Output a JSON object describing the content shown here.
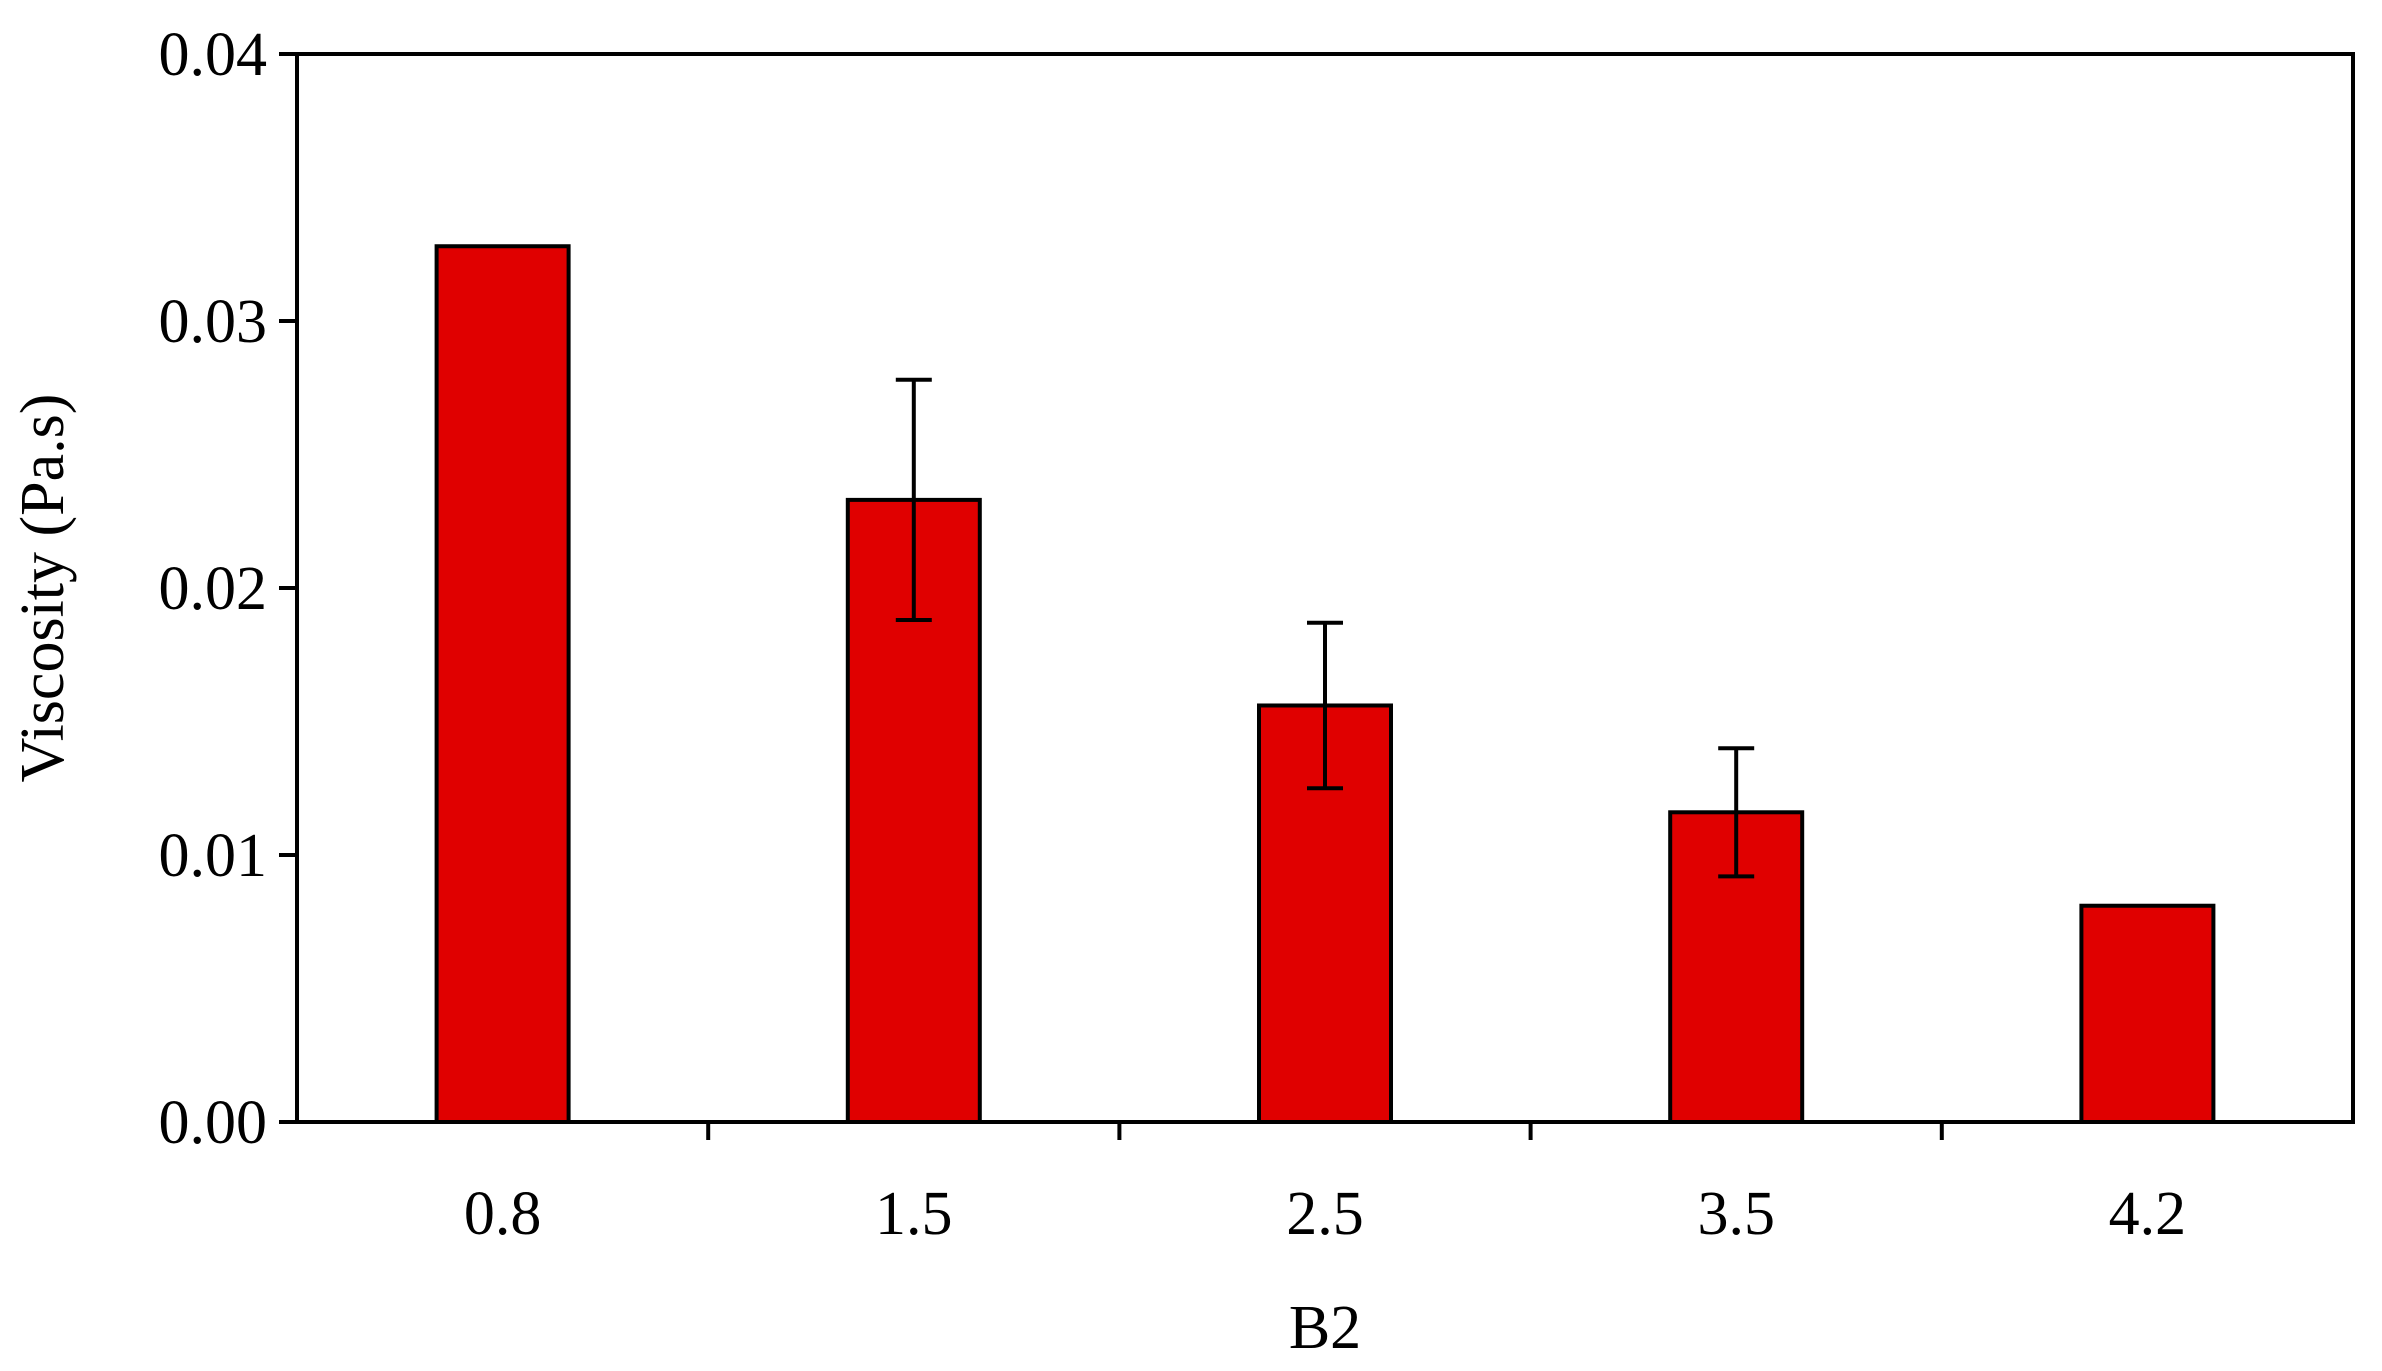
{
  "chart_data": {
    "type": "bar",
    "title": "",
    "xlabel": "B2",
    "ylabel": "Viscosity (Pa.s)",
    "categories": [
      "0.8",
      "1.5",
      "2.5",
      "3.5",
      "4.2"
    ],
    "values": [
      0.0328,
      0.0233,
      0.0156,
      0.0116,
      0.0081
    ],
    "error_bars": [
      null,
      0.0045,
      0.0031,
      0.0024,
      null
    ],
    "ylim": [
      0,
      0.04
    ],
    "yticks": [
      0.0,
      0.01,
      0.02,
      0.03,
      0.04
    ],
    "ytick_labels": [
      "0.00",
      "0.01",
      "0.02",
      "0.03",
      "0.04"
    ],
    "grid": false,
    "legend": "none",
    "bar_color": "#e00000",
    "bar_edge_color": "#000000"
  }
}
